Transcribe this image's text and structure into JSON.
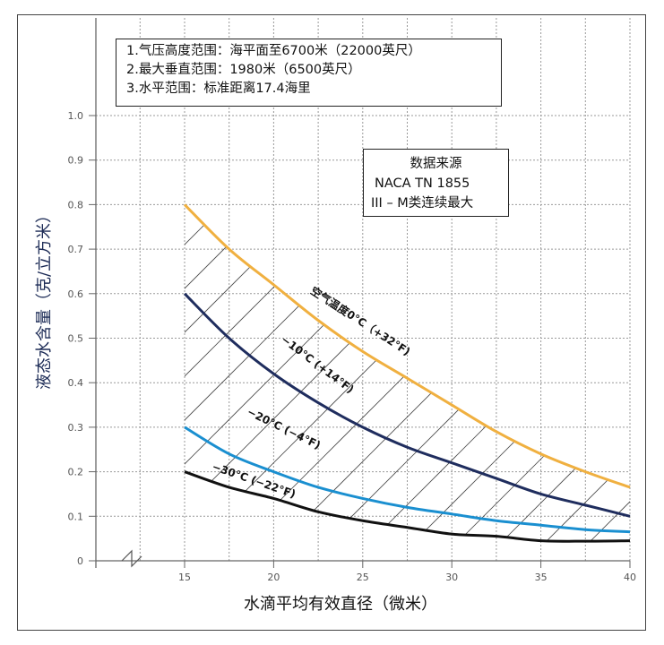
{
  "notes": {
    "lines": [
      "1.气压高度范围：海平面至6700米（22000英尺）",
      "2.最大垂直范围：1980米（6500英尺）",
      "3.水平范围：标准距离17.4海里"
    ]
  },
  "source": {
    "title": "数据来源",
    "line2": "NACA  TN  1855",
    "line3": "III – M类连续最大"
  },
  "chart_data": {
    "type": "line",
    "xlabel": "水滴平均有效直径（微米）",
    "ylabel": "液态水含量（克/立方米）",
    "xlim": [
      10,
      40
    ],
    "ylim": [
      0,
      1.0
    ],
    "x_axis_break": true,
    "grid": true,
    "xticks": [
      "15",
      "20",
      "25",
      "30",
      "35",
      "40"
    ],
    "yticks": [
      "0",
      "0.1",
      "0.2",
      "0.3",
      "0.4",
      "0.5",
      "0.6",
      "0.7",
      "0.8",
      "0.9",
      "1.0"
    ],
    "hatched_region": "between 0°C and −30°C curves",
    "series": [
      {
        "name": "空气温度0°C（+32°F)",
        "color": "#f0b040",
        "x": [
          15,
          17.5,
          20,
          22.5,
          25,
          27.5,
          30,
          32.5,
          35,
          37.5,
          40
        ],
        "y": [
          0.8,
          0.7,
          0.62,
          0.54,
          0.47,
          0.41,
          0.35,
          0.29,
          0.24,
          0.2,
          0.165
        ]
      },
      {
        "name": "−10°C (+14°F)",
        "color": "#1f2d5e",
        "x": [
          15,
          17.5,
          20,
          22.5,
          25,
          27.5,
          30,
          32.5,
          35,
          37.5,
          40
        ],
        "y": [
          0.6,
          0.5,
          0.42,
          0.355,
          0.3,
          0.255,
          0.22,
          0.185,
          0.15,
          0.125,
          0.1
        ]
      },
      {
        "name": "−20°C (−4°F)",
        "color": "#1a8fd0",
        "x": [
          15,
          17.5,
          20,
          22.5,
          25,
          27.5,
          30,
          32.5,
          35,
          37.5,
          40
        ],
        "y": [
          0.3,
          0.24,
          0.2,
          0.165,
          0.14,
          0.12,
          0.105,
          0.09,
          0.08,
          0.07,
          0.065
        ]
      },
      {
        "name": "−30°C (−22°F)",
        "color": "#111111",
        "x": [
          15,
          17.5,
          20,
          22.5,
          25,
          27.5,
          30,
          32.5,
          35,
          37.5,
          40
        ],
        "y": [
          0.2,
          0.165,
          0.14,
          0.11,
          0.09,
          0.075,
          0.06,
          0.055,
          0.045,
          0.044,
          0.045
        ]
      }
    ]
  }
}
